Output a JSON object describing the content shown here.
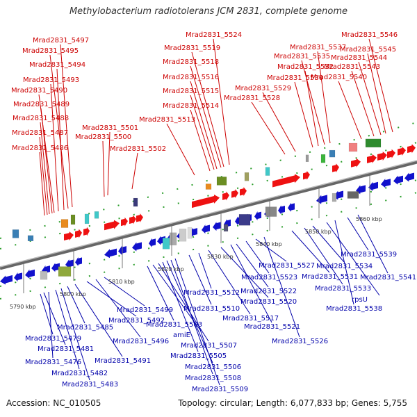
{
  "header": {
    "title": "Methylobacterium radiotolerans JCM 2831, complete genome"
  },
  "footer": {
    "accession": "Accession: NC_010505",
    "summary": "Topology: circular; Length: 6,077,833 bp; Genes: 5,755"
  },
  "colors": {
    "top_label": "#cc0000",
    "bottom_label": "#0000aa",
    "forward_gene": "#ee1111",
    "reverse_gene": "#1111cc",
    "axis": "#777777"
  },
  "ticks": [
    "5790 kbp",
    "5800 kbp",
    "5810 kbp",
    "5820 kbp",
    "5830 kbp",
    "5840 kbp",
    "5850 kbp",
    "5860 kbp"
  ],
  "top_labels": [
    "Mrad2831_5497",
    "Mrad2831_5495",
    "Mrad2831_5494",
    "Mrad2831_5493",
    "Mrad2831_5490",
    "Mrad2831_5489",
    "Mrad2831_5488",
    "Mrad2831_5487",
    "Mrad2831_5486",
    "Mrad2831_5501",
    "Mrad2831_5500",
    "Mrad2831_5502",
    "Mrad2831_5524",
    "Mrad2831_5519",
    "Mrad2831_5518",
    "Mrad2831_5516",
    "Mrad2831_5515",
    "Mrad2831_5514",
    "Mrad2831_5513",
    "Mrad2831_5537",
    "Mrad2831_5535",
    "Mrad2831_5532",
    "Mrad2831_5530",
    "Mrad2831_5529",
    "Mrad2831_5528",
    "Mrad2831_5546",
    "Mrad2831_5545",
    "Mrad2831_5544",
    "Mrad2831_5543",
    "Mrad2831_5540"
  ],
  "bottom_labels": [
    "Mrad2831_5479",
    "Mrad2831_5481",
    "Mrad2831_5476",
    "Mrad2831_5482",
    "Mrad2831_5483",
    "Mrad2831_5485",
    "Mrad2831_5491",
    "Mrad2831_5492",
    "Mrad2831_5496",
    "Mrad2831_5499",
    "Mrad2831_5503",
    "amiE",
    "Mrad2831_5507",
    "Mrad2831_5505",
    "Mrad2831_5506",
    "Mrad2831_5508",
    "Mrad2831_5509",
    "Mrad2831_5510",
    "Mrad2831_5512",
    "Mrad2831_5517",
    "Mrad2831_5520",
    "Mrad2831_5521",
    "Mrad2831_5522",
    "Mrad2831_5523",
    "Mrad2831_5527",
    "Mrad2831_5526",
    "Mrad2831_5531",
    "Mrad2831_5533",
    "Mrad2831_5534",
    "rpsU",
    "Mrad2831_5538",
    "Mrad2831_5539",
    "Mrad2831_5541"
  ]
}
